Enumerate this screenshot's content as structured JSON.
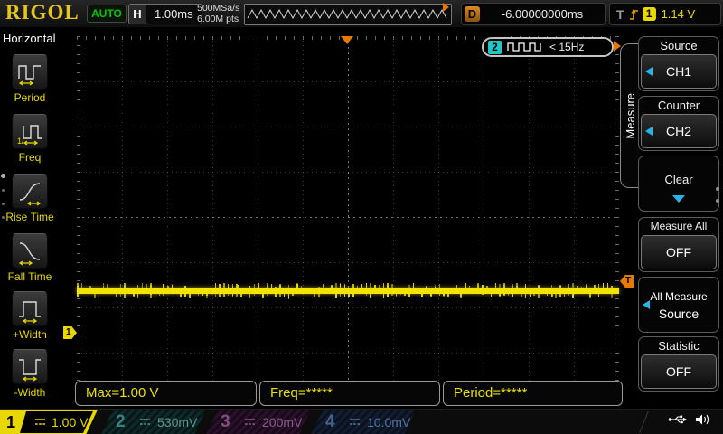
{
  "top_bar": {
    "logo": "RIGOL",
    "status": "AUTO",
    "h_label": "H",
    "timebase": "1.00ms",
    "sample_rate": "500MSa/s",
    "memory_depth": "6.00M pts",
    "delay_label": "D",
    "delay_value": "-6.00000000ms",
    "trigger_label": "T",
    "trigger_channel": "1",
    "trigger_level": "1.14 V"
  },
  "left_menu": {
    "title": "Horizontal",
    "items": [
      {
        "label": "Period"
      },
      {
        "label": "Freq"
      },
      {
        "label": "Rise Time"
      },
      {
        "label": "Fall Time"
      },
      {
        "label": "+Width"
      },
      {
        "label": "-Width"
      }
    ]
  },
  "graticule": {
    "counter_badge": {
      "channel": "2",
      "reading": "< 15Hz"
    },
    "ch1_marker": "1",
    "trigger_marker": "T"
  },
  "right_menu": {
    "tab": "Measure",
    "source_label": "Source",
    "source_value": "CH1",
    "counter_label": "Counter",
    "counter_value": "CH2",
    "clear_label": "Clear",
    "measure_all_label": "Measure All",
    "measure_all_value": "OFF",
    "all_measure_line1": "All Measure",
    "all_measure_line2": "Source",
    "statistic_label": "Statistic",
    "statistic_value": "OFF"
  },
  "measurements": [
    {
      "text": "Max=1.00 V"
    },
    {
      "text": "Freq=*****"
    },
    {
      "text": "Period=*****"
    }
  ],
  "channel_bar": {
    "channels": [
      {
        "num": "1",
        "scale": "1.00 V",
        "active": true
      },
      {
        "num": "2",
        "scale": "530mV",
        "active": false
      },
      {
        "num": "3",
        "scale": "200mV",
        "active": false
      },
      {
        "num": "4",
        "scale": "10.0mV",
        "active": false
      }
    ]
  },
  "colors": {
    "accent_yellow": "#e8d800",
    "trigger_orange": "#e87800",
    "softkey_blue": "#28b4e8",
    "auto_green": "#00c800",
    "counter_cyan": "#1ec8c8",
    "ch2_teal": "#5f9797",
    "ch3_magenta": "#8f5a8f",
    "ch4_blue": "#56749f"
  }
}
